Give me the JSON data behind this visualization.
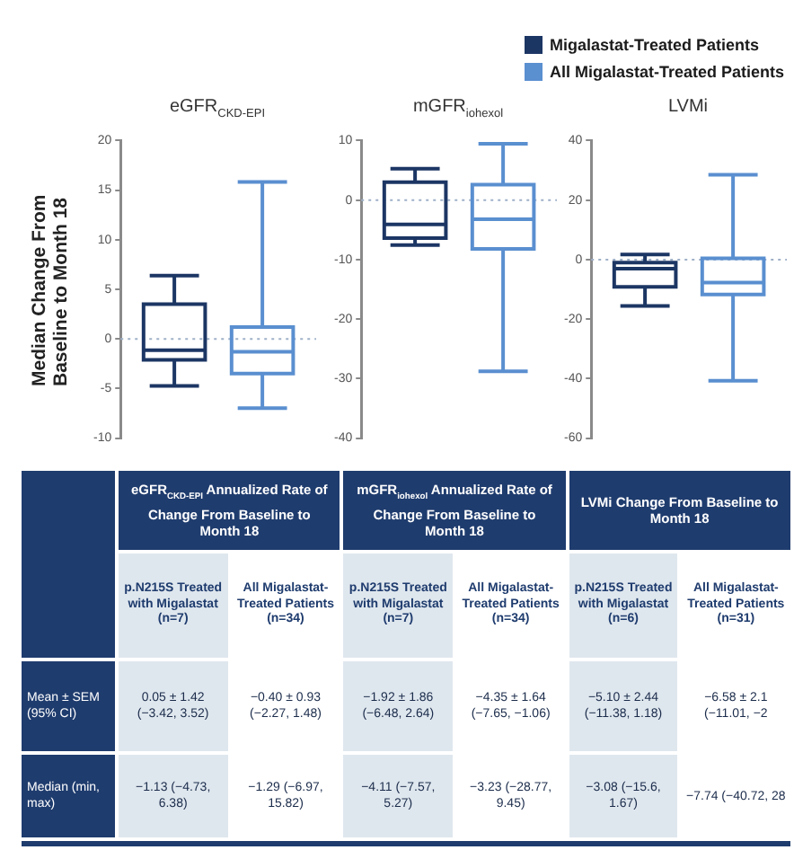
{
  "chart_data": [
    {
      "type": "box",
      "title": "eGFR$_{CKD-EPI}$",
      "ylabel": "Median Change From Baseline to Month 18",
      "categories": [
        null
      ],
      "series": [
        {
          "color": "#1c3664",
          "boxes": [
            {
              "low": -4.73,
              "q1": -2.1,
              "median": -1.13,
              "q3": 3.5,
              "high": 6.38
            }
          ]
        },
        {
          "color": "#5a8fd0",
          "boxes": [
            {
              "low": -6.97,
              "q1": -3.5,
              "median": -1.29,
              "q3": 1.2,
              "high": 15.82
            }
          ]
        }
      ],
      "ylim": [
        -10,
        20
      ],
      "yticks": [
        -10,
        -5,
        0,
        5,
        10,
        15,
        20
      ],
      "ref_lines": [
        {
          "axis": "y",
          "value": 0,
          "color": "#9fb0c8",
          "line_style": "dotted"
        }
      ],
      "tick_labels": "y"
    },
    {
      "type": "box",
      "title": "mGFR$_{iohexol}$",
      "categories": [
        null
      ],
      "series": [
        {
          "name": "Migalastat-Treated Patients",
          "color": "#1c3664",
          "boxes": [
            {
              "low": -7.57,
              "q1": -6.4,
              "median": -4.11,
              "q3": 3.0,
              "high": 5.27
            }
          ]
        },
        {
          "name": "All Migalastat-Treated Patients",
          "color": "#5a8fd0",
          "boxes": [
            {
              "low": -28.77,
              "q1": -8.2,
              "median": -3.23,
              "q3": 2.6,
              "high": 9.45
            }
          ]
        }
      ],
      "ylim": [
        -40,
        10
      ],
      "yticks": [
        -40,
        -30,
        -20,
        -10,
        0,
        10
      ],
      "ref_lines": [
        {
          "axis": "y",
          "value": 0,
          "color": "#9fb0c8",
          "line_style": "dotted"
        }
      ],
      "tick_labels": "y",
      "legend": "top right"
    },
    {
      "type": "box",
      "title": "LVMi",
      "categories": [
        null
      ],
      "series": [
        {
          "color": "#1c3664",
          "boxes": [
            {
              "low": -15.6,
              "q1": -9.2,
              "median": -3.08,
              "q3": -1.0,
              "high": 1.67
            }
          ]
        },
        {
          "color": "#5a8fd0",
          "boxes": [
            {
              "low": -40.72,
              "q1": -11.7,
              "median": -7.74,
              "q3": 0.4,
              "high": 28.5
            }
          ]
        }
      ],
      "ylim": [
        -60,
        40
      ],
      "yticks": [
        -60,
        -40,
        -20,
        0,
        20,
        40
      ],
      "ref_lines": [
        {
          "axis": "y",
          "value": 0,
          "color": "#9fb0c8",
          "line_style": "dotted"
        }
      ],
      "tick_labels": "y"
    },
    {
      "type": "other",
      "annotations": [
        "eGFR$_{CKD-EPI}$ Annualized Rate of Change From Baseline to Month 18",
        "mGFR$_{iohexol}$ Annualized Rate of Change From Baseline to Month 18",
        "LVMi Change From Baseline to Month 18",
        "p.N215S Treated with Migalastat (n=7)",
        "All Migalastat-Treated Patients (n=34)",
        "p.N215S Treated with Migalastat (n=7)",
        "All Migalastat-Treated Patients (n=34)",
        "p.N215S Treated with Migalastat (n=6)",
        "All Migalastat-Treated Patients (n=31)",
        "Mean ± SEM (95% CI)",
        "0.05 ± 1.42 (−3.42, 3.52)",
        "−0.40 ± 0.93 (−2.27, 1.48)",
        "−1.92 ± 1.86 (−6.48, 2.64)",
        "−4.35 ± 1.64 (−7.65, −1.06)",
        "−5.10 ± 2.44 (−11.38, 1.18)",
        "−6.58 ± 2.1 (−11.01, −2",
        "Median (min, max)",
        "−1.13 (−4.73, 6.38)",
        "−1.29 (−6.97, 15.82)",
        "−4.11 (−7.57, 5.27)",
        "−3.23 (−28.77, 9.45)",
        "−3.08 (−15.6, 1.67)",
        "−7.74 (−40.72, 28"
      ]
    }
  ]
}
